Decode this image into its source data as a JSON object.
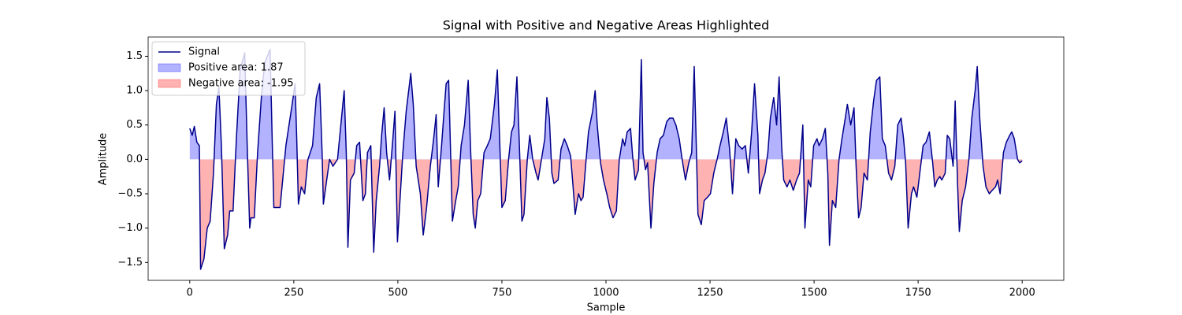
{
  "chart_data": {
    "type": "line",
    "title": "Signal with Positive and Negative Areas Highlighted",
    "x_label": "Sample",
    "y_label": "Amplitude",
    "xlim": [
      -100,
      2100
    ],
    "ylim": [
      -1.76,
      1.78
    ],
    "xticks": [
      0,
      250,
      500,
      750,
      1000,
      1250,
      1500,
      1750,
      2000
    ],
    "yticks": [
      {
        "value": -1.5,
        "label": "−1.5"
      },
      {
        "value": -1.0,
        "label": "−1.0"
      },
      {
        "value": -0.5,
        "label": "−0.5"
      },
      {
        "value": 0,
        "label": "0.0"
      },
      0.5,
      {
        "value": 1.0,
        "label": "1.0"
      },
      1.5
    ],
    "legend_position": "upper left",
    "x": [
      0,
      6,
      11,
      17,
      23,
      26,
      34,
      42,
      49,
      57,
      64,
      70,
      76,
      83,
      91,
      96,
      104,
      112,
      121,
      132,
      138,
      144,
      147,
      155,
      163,
      172,
      180,
      193,
      198,
      202,
      210,
      217,
      231,
      246,
      253,
      257,
      261,
      268,
      276,
      284,
      295,
      304,
      312,
      318,
      321,
      329,
      336,
      344,
      355,
      363,
      371,
      376,
      380,
      386,
      395,
      401,
      408,
      416,
      422,
      427,
      435,
      442,
      448,
      456,
      461,
      467,
      473,
      480,
      488,
      493,
      499,
      505,
      512,
      520,
      526,
      531,
      537,
      544,
      554,
      561,
      569,
      578,
      586,
      592,
      597,
      605,
      611,
      616,
      622,
      628,
      631,
      639,
      645,
      652,
      660,
      669,
      675,
      681,
      686,
      692,
      699,
      707,
      715,
      722,
      732,
      739,
      745,
      750,
      758,
      766,
      773,
      779,
      786,
      792,
      798,
      803,
      811,
      817,
      824,
      832,
      837,
      845,
      853,
      858,
      864,
      870,
      875,
      885,
      892,
      900,
      907,
      915,
      921,
      926,
      934,
      940,
      945,
      953,
      958,
      968,
      974,
      979,
      987,
      994,
      1002,
      1009,
      1017,
      1025,
      1032,
      1040,
      1045,
      1051,
      1059,
      1064,
      1070,
      1078,
      1085,
      1089,
      1095,
      1100,
      1108,
      1115,
      1123,
      1130,
      1138,
      1146,
      1153,
      1161,
      1168,
      1176,
      1183,
      1191,
      1199,
      1206,
      1212,
      1217,
      1221,
      1229,
      1236,
      1244,
      1251,
      1259,
      1267,
      1274,
      1282,
      1289,
      1297,
      1304,
      1312,
      1319,
      1327,
      1335,
      1342,
      1350,
      1357,
      1365,
      1369,
      1376,
      1382,
      1389,
      1395,
      1403,
      1410,
      1416,
      1422,
      1427,
      1435,
      1442,
      1450,
      1458,
      1465,
      1473,
      1478,
      1486,
      1492,
      1499,
      1507,
      1512,
      1520,
      1527,
      1533,
      1537,
      1544,
      1552,
      1560,
      1567,
      1575,
      1580,
      1588,
      1596,
      1601,
      1607,
      1613,
      1620,
      1628,
      1635,
      1643,
      1650,
      1658,
      1664,
      1671,
      1679,
      1686,
      1694,
      1701,
      1709,
      1715,
      1720,
      1726,
      1734,
      1739,
      1747,
      1754,
      1762,
      1769,
      1777,
      1785,
      1790,
      1796,
      1802,
      1807,
      1815,
      1820,
      1826,
      1834,
      1839,
      1845,
      1849,
      1856,
      1864,
      1872,
      1879,
      1887,
      1892,
      1898,
      1906,
      1913,
      1921,
      1928,
      1936,
      1941,
      1947,
      1955,
      1962,
      1970,
      1975,
      1981,
      1989,
      1994,
      2000
    ],
    "series": [
      {
        "name": "Signal",
        "color": "#00008b",
        "values": [
          0.45,
          0.35,
          0.48,
          0.25,
          0.2,
          -1.6,
          -1.45,
          -1.0,
          -0.9,
          -0.2,
          0.8,
          1.05,
          0.2,
          -1.3,
          -1.1,
          -0.75,
          -0.75,
          0.3,
          1.3,
          1.55,
          0.2,
          -1.0,
          -0.85,
          -0.85,
          0.1,
          0.9,
          1.4,
          1.6,
          0.3,
          -0.7,
          -0.7,
          -0.7,
          0.2,
          0.8,
          1.1,
          0.3,
          -0.65,
          -0.4,
          -0.5,
          0.0,
          0.2,
          0.9,
          1.1,
          0.1,
          -0.65,
          -0.3,
          0.0,
          -0.1,
          0.0,
          0.5,
          1.0,
          0.1,
          -1.28,
          -0.3,
          -0.2,
          0.2,
          0.25,
          -0.6,
          -0.5,
          0.1,
          0.2,
          -1.35,
          -0.6,
          -0.1,
          0.35,
          0.75,
          0.1,
          -0.3,
          0.3,
          0.7,
          -1.2,
          -0.6,
          0.1,
          0.7,
          1.0,
          1.25,
          0.8,
          -0.1,
          -0.5,
          -1.1,
          -0.7,
          -0.1,
          0.3,
          0.65,
          -0.4,
          0.2,
          0.7,
          1.1,
          1.15,
          -0.2,
          -0.9,
          -0.6,
          -0.4,
          0.2,
          0.5,
          1.15,
          0.1,
          -0.8,
          -1.0,
          -0.6,
          -0.5,
          0.1,
          0.2,
          0.3,
          0.8,
          1.3,
          0.2,
          -0.7,
          -0.6,
          0.0,
          0.4,
          0.5,
          1.2,
          0.2,
          -0.9,
          -0.8,
          0.0,
          0.35,
          0.0,
          -0.2,
          -0.3,
          0.0,
          0.3,
          0.9,
          0.6,
          -0.2,
          -0.35,
          -0.3,
          0.15,
          0.3,
          0.2,
          0.05,
          -0.4,
          -0.8,
          -0.5,
          -0.6,
          -0.55,
          0.05,
          0.4,
          0.7,
          1.0,
          0.5,
          -0.05,
          -0.3,
          -0.5,
          -0.7,
          -0.85,
          -0.75,
          0.0,
          0.3,
          0.2,
          0.4,
          0.45,
          0.05,
          -0.3,
          -0.15,
          1.45,
          0.1,
          -0.15,
          -0.05,
          -1.0,
          -0.35,
          0.1,
          0.3,
          0.35,
          0.55,
          0.6,
          0.6,
          0.5,
          0.3,
          0.0,
          -0.3,
          -0.05,
          0.1,
          1.35,
          0.2,
          -0.8,
          -0.95,
          -0.6,
          -0.55,
          -0.5,
          -0.2,
          0.0,
          0.2,
          0.4,
          0.6,
          0.15,
          -0.5,
          0.3,
          0.2,
          0.15,
          0.2,
          -0.2,
          0.4,
          1.1,
          0.35,
          -0.5,
          -0.3,
          -0.2,
          0.1,
          0.6,
          0.9,
          0.5,
          1.2,
          0.2,
          -0.3,
          -0.4,
          -0.3,
          -0.45,
          -0.3,
          -0.2,
          0.5,
          -1.0,
          -0.3,
          -0.4,
          0.2,
          0.3,
          0.2,
          0.3,
          0.45,
          -0.2,
          -1.25,
          -0.6,
          -0.7,
          0.0,
          0.3,
          0.6,
          0.8,
          0.5,
          0.75,
          -0.1,
          -0.85,
          -0.7,
          -0.2,
          -0.3,
          0.4,
          0.85,
          1.15,
          1.2,
          0.3,
          0.2,
          -0.2,
          -0.3,
          -0.1,
          0.5,
          0.6,
          0.3,
          -0.05,
          -1.0,
          -0.5,
          -0.4,
          -0.55,
          -0.2,
          0.2,
          0.25,
          0.4,
          -0.05,
          -0.4,
          -0.3,
          -0.25,
          -0.3,
          -0.2,
          0.35,
          0.3,
          -0.1,
          0.85,
          -0.4,
          -1.05,
          -0.6,
          -0.4,
          0.0,
          0.6,
          1.0,
          1.35,
          0.6,
          -0.1,
          -0.4,
          -0.5,
          -0.45,
          -0.4,
          -0.3,
          -0.5,
          0.1,
          0.25,
          0.35,
          0.4,
          0.3,
          0.0,
          -0.05,
          -0.02
        ]
      }
    ],
    "areas": [
      {
        "name": "Positive area: 1.87",
        "color": "#0000ff",
        "side": "positive"
      },
      {
        "name": "Negative area: -1.95",
        "color": "#ff0000",
        "side": "negative"
      }
    ]
  }
}
